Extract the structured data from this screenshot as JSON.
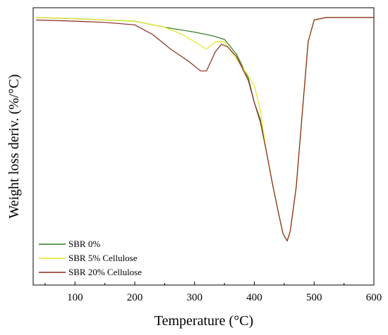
{
  "chart_data": {
    "type": "line",
    "xlabel": "Temperature (°C)",
    "ylabel": "Weight loss deriv. (%/°C)",
    "xlim": [
      30,
      600
    ],
    "ylim": [
      -1.0,
      0.02
    ],
    "x_ticks": [
      "100",
      "200",
      "300",
      "400",
      "500",
      "600"
    ],
    "x_tick_values": [
      100,
      200,
      300,
      400,
      500,
      600
    ],
    "y_ticks_labeled": false,
    "legend_position": "bottom-left",
    "series": [
      {
        "name": "SBR 0%",
        "color": "#2e7d1e",
        "points": [
          [
            35,
            0.0
          ],
          [
            100,
            -0.005
          ],
          [
            150,
            -0.01
          ],
          [
            200,
            -0.015
          ],
          [
            250,
            -0.04
          ],
          [
            300,
            -0.06
          ],
          [
            330,
            -0.075
          ],
          [
            350,
            -0.09
          ],
          [
            370,
            -0.15
          ],
          [
            390,
            -0.25
          ],
          [
            400,
            -0.35
          ],
          [
            410,
            -0.42
          ],
          [
            420,
            -0.55
          ],
          [
            430,
            -0.68
          ],
          [
            440,
            -0.8
          ],
          [
            448,
            -0.89
          ],
          [
            455,
            -0.92
          ],
          [
            460,
            -0.88
          ],
          [
            470,
            -0.7
          ],
          [
            480,
            -0.4
          ],
          [
            490,
            -0.1
          ],
          [
            500,
            -0.01
          ],
          [
            520,
            0.0
          ],
          [
            600,
            0.0
          ]
        ]
      },
      {
        "name": "SBR 5% Cellulose",
        "color": "#e6e625",
        "points": [
          [
            35,
            0.0
          ],
          [
            100,
            -0.005
          ],
          [
            150,
            -0.01
          ],
          [
            200,
            -0.015
          ],
          [
            250,
            -0.04
          ],
          [
            280,
            -0.07
          ],
          [
            300,
            -0.1
          ],
          [
            320,
            -0.13
          ],
          [
            335,
            -0.1
          ],
          [
            350,
            -0.1
          ],
          [
            370,
            -0.17
          ],
          [
            390,
            -0.24
          ],
          [
            400,
            -0.28
          ],
          [
            410,
            -0.38
          ],
          [
            420,
            -0.55
          ],
          [
            430,
            -0.68
          ],
          [
            440,
            -0.8
          ],
          [
            448,
            -0.89
          ],
          [
            455,
            -0.92
          ],
          [
            460,
            -0.88
          ],
          [
            470,
            -0.7
          ],
          [
            480,
            -0.4
          ],
          [
            490,
            -0.1
          ],
          [
            500,
            -0.01
          ],
          [
            520,
            0.0
          ],
          [
            600,
            0.0
          ]
        ]
      },
      {
        "name": "SBR 20% Cellulose",
        "color": "#8b2a1c",
        "points": [
          [
            35,
            -0.01
          ],
          [
            100,
            -0.015
          ],
          [
            150,
            -0.02
          ],
          [
            200,
            -0.03
          ],
          [
            230,
            -0.07
          ],
          [
            260,
            -0.13
          ],
          [
            290,
            -0.18
          ],
          [
            310,
            -0.22
          ],
          [
            320,
            -0.22
          ],
          [
            335,
            -0.14
          ],
          [
            345,
            -0.11
          ],
          [
            355,
            -0.12
          ],
          [
            370,
            -0.16
          ],
          [
            390,
            -0.26
          ],
          [
            400,
            -0.35
          ],
          [
            410,
            -0.43
          ],
          [
            420,
            -0.55
          ],
          [
            430,
            -0.68
          ],
          [
            440,
            -0.8
          ],
          [
            448,
            -0.89
          ],
          [
            455,
            -0.92
          ],
          [
            460,
            -0.88
          ],
          [
            470,
            -0.7
          ],
          [
            480,
            -0.4
          ],
          [
            490,
            -0.1
          ],
          [
            500,
            -0.01
          ],
          [
            520,
            0.0
          ],
          [
            600,
            0.0
          ]
        ]
      }
    ]
  }
}
